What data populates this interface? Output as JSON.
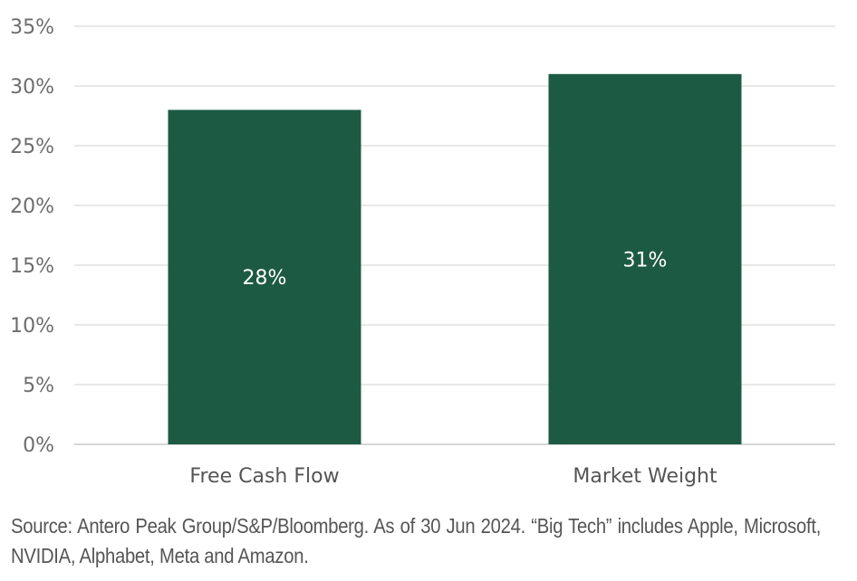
{
  "chart_data": {
    "type": "bar",
    "categories": [
      "Free Cash Flow",
      "Market Weight"
    ],
    "values": [
      28,
      31
    ],
    "data_labels": [
      "28%",
      "31%"
    ],
    "ylim": [
      0,
      35
    ],
    "yticks": [
      0,
      5,
      10,
      15,
      20,
      25,
      30,
      35
    ],
    "ytick_labels": [
      "0%",
      "5%",
      "10%",
      "15%",
      "20%",
      "25%",
      "30%",
      "35%"
    ],
    "grid": true,
    "title": "",
    "xlabel": "",
    "ylabel": ""
  },
  "colors": {
    "bar": "#1d5a44",
    "grid": "#d9d9d9",
    "axis": "#bfbfbf"
  },
  "caption": "Source: Antero Peak Group/S&P/Bloomberg. As of 30 Jun 2024. “Big Tech” includes Apple, Microsoft, NVIDIA, Alphabet, Meta and Amazon."
}
